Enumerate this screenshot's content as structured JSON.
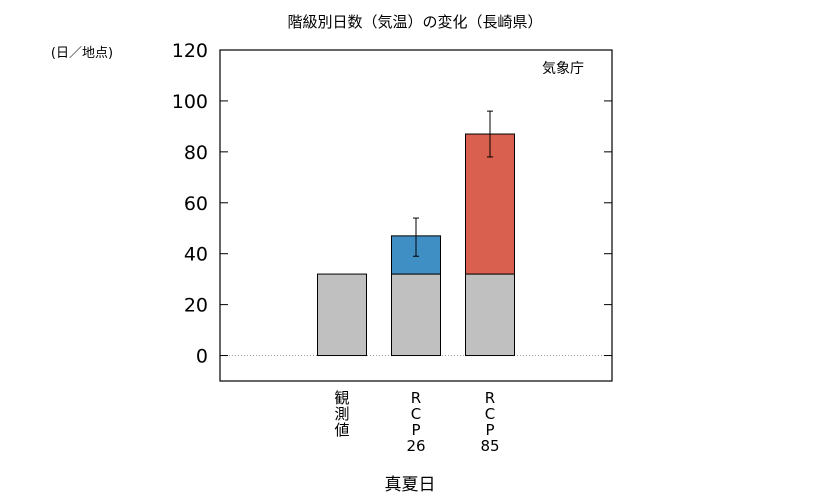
{
  "chart_data": {
    "type": "bar",
    "title": "階級別日数（気温）の変化（長崎県）",
    "ylabel": "(日／地点)",
    "xlabel": "真夏日",
    "source_label": "気象庁",
    "ylim": [
      -10,
      120
    ],
    "yticks": [
      0,
      20,
      40,
      60,
      80,
      100,
      120
    ],
    "categories": [
      "観測値",
      "RCP26",
      "RCP85"
    ],
    "category_label_lines": [
      [
        "観",
        "測",
        "値"
      ],
      [
        "R",
        "C",
        "P",
        "26"
      ],
      [
        "R",
        "C",
        "P",
        "85"
      ]
    ],
    "series": [
      {
        "name": "",
        "values": [
          32,
          32,
          32
        ],
        "color": "#c0c0c0"
      },
      {
        "name": "",
        "values": [
          0,
          15,
          55
        ],
        "color_by_category": [
          "#c0c0c0",
          "#3f8fc4",
          "#d9604e"
        ]
      }
    ],
    "totals": [
      32,
      47,
      87
    ],
    "error_bars": [
      null,
      {
        "low": 39,
        "high": 54
      },
      {
        "low": 78,
        "high": 96
      }
    ],
    "zero_line": "dotted",
    "legend": "none"
  }
}
